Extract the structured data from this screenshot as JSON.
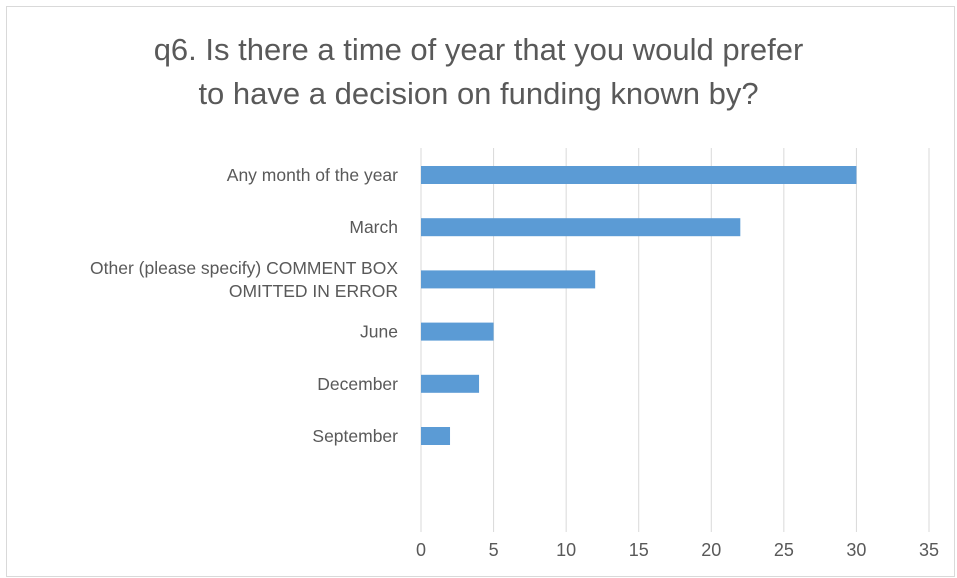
{
  "chart_data": {
    "type": "bar",
    "orientation": "horizontal",
    "title_lines": [
      "q6. Is there a time of year that you would prefer",
      "to have a decision on funding known by?"
    ],
    "categories": [
      [
        "Any month of the year"
      ],
      [
        "March"
      ],
      [
        "Other (please specify) COMMENT BOX",
        "OMITTED IN ERROR"
      ],
      [
        "June"
      ],
      [
        "December"
      ],
      [
        "September"
      ]
    ],
    "values": [
      30,
      22,
      12,
      5,
      4,
      2
    ],
    "xlim": [
      0,
      35
    ],
    "x_ticks": [
      "0",
      "5",
      "10",
      "15",
      "20",
      "25",
      "30",
      "35"
    ],
    "grid": true,
    "legend": "none",
    "bar_color": "#5b9bd5",
    "grid_color": "#d9d9d9",
    "text_color": "#595959"
  }
}
